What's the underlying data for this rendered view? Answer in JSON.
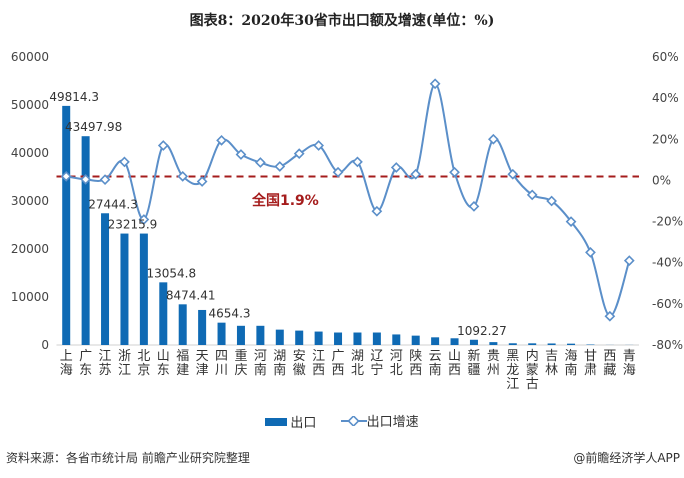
{
  "title": "图表8：2020年30省市出口额及增速(单位：%)",
  "legend": {
    "bar": "出口",
    "line": "出口增速"
  },
  "source": "资料来源：各省市统计局 前瞻产业研究院整理",
  "brand": "@前瞻经济学人APP",
  "national_label": "全国1.9%",
  "colors": {
    "bar": "#0f6ab4",
    "line": "#5b8fc9",
    "reference": "#a51c1c"
  },
  "chart_data": {
    "type": "bar+line",
    "title": "图表8：2020年30省市出口额及增速(单位：%)",
    "categories": [
      "上海",
      "广东",
      "江苏",
      "浙江",
      "北京",
      "山东",
      "福建",
      "天津",
      "四川",
      "重庆",
      "河南",
      "湖南",
      "安徽",
      "江西",
      "广西",
      "湖北",
      "辽宁",
      "河北",
      "陕西",
      "云南",
      "山西",
      "新疆",
      "贵州",
      "黑龙江",
      "内蒙古",
      "吉林",
      "海南",
      "甘肃",
      "西藏",
      "青海"
    ],
    "series": [
      {
        "name": "出口",
        "type": "bar",
        "axis": "left",
        "values": [
          49814.3,
          43497.98,
          27444.3,
          23215.9,
          23215.9,
          13054.8,
          8474.41,
          7300,
          4654.3,
          4000,
          4000,
          3200,
          3000,
          2800,
          2600,
          2600,
          2600,
          2200,
          1950,
          1600,
          1400,
          1092.27,
          600,
          360,
          350,
          320,
          280,
          100,
          20,
          20
        ],
        "labels": {
          "0": "49814.3",
          "1": "43497.98",
          "2": "27444.3",
          "3": "23215.9",
          "5": "13054.8",
          "6": "8474.41",
          "8": "4654.3",
          "21": "1092.27"
        }
      },
      {
        "name": "出口增速",
        "type": "line",
        "axis": "right",
        "unit": "%",
        "values": [
          2,
          0.5,
          0.4,
          9,
          -19,
          17,
          2,
          -0.5,
          19.5,
          12.6,
          8.7,
          6.8,
          13,
          17,
          4,
          9,
          -15,
          6.3,
          3,
          47,
          4,
          -12.6,
          20,
          3,
          -7,
          -10,
          -20,
          -35,
          -66,
          -39
        ]
      }
    ],
    "reference_line": {
      "value": 1.9,
      "label": "全国1.9%"
    },
    "left_axis": {
      "range": [
        0,
        60000
      ],
      "ticks": [
        "0",
        "10000",
        "20000",
        "30000",
        "40000",
        "50000",
        "60000"
      ]
    },
    "right_axis": {
      "range": [
        -80,
        60
      ],
      "ticks": [
        "-80%",
        "-60%",
        "-40%",
        "-20%",
        "0%",
        "20%",
        "40%",
        "60%"
      ]
    },
    "grid": false,
    "legend_position": "bottom"
  }
}
